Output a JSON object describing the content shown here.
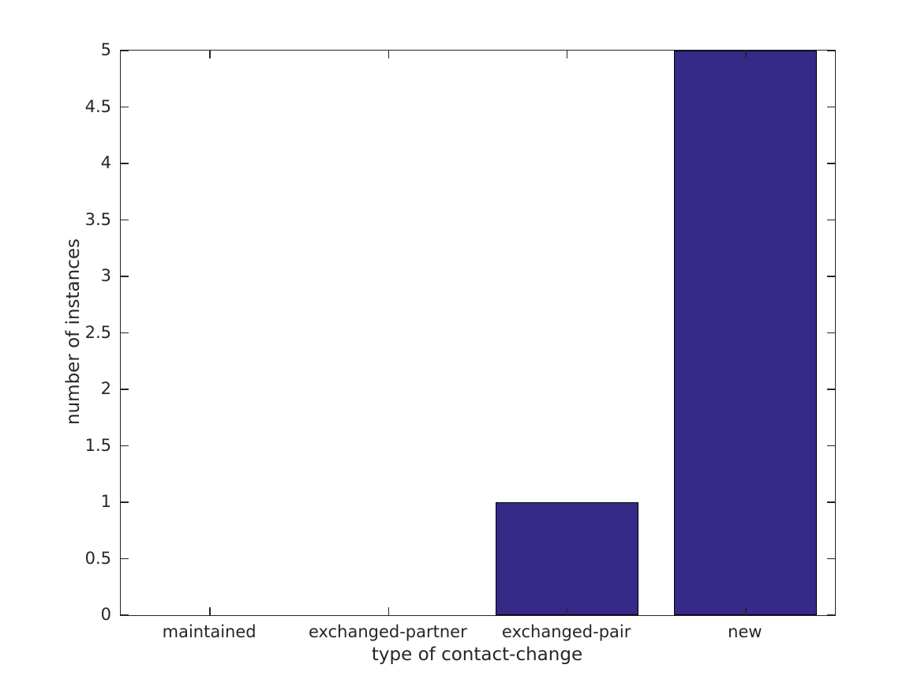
{
  "chart_data": {
    "type": "bar",
    "title": "",
    "categories": [
      "maintained",
      "exchanged-partner",
      "exchanged-pair",
      "new"
    ],
    "values": [
      0,
      0,
      1,
      5
    ],
    "xlabel": "type of contact-change",
    "ylabel": "number of instances",
    "ylim": [
      0,
      5
    ],
    "ytick_values": [
      0,
      0.5,
      1,
      1.5,
      2,
      2.5,
      3,
      3.5,
      4,
      4.5,
      5
    ],
    "ytick_labels": [
      "0",
      "0.5",
      "1",
      "1.5",
      "2",
      "2.5",
      "3",
      "3.5",
      "4",
      "4.5",
      "5"
    ],
    "bar_width_fraction": 0.8,
    "grid": false,
    "legend": null,
    "tick_direction": "in",
    "box": true,
    "colors": {
      "bar_fill": "#352a87",
      "bar_edge": "#000000",
      "axis": "#262626",
      "text": "#262626",
      "background": "#ffffff"
    }
  }
}
